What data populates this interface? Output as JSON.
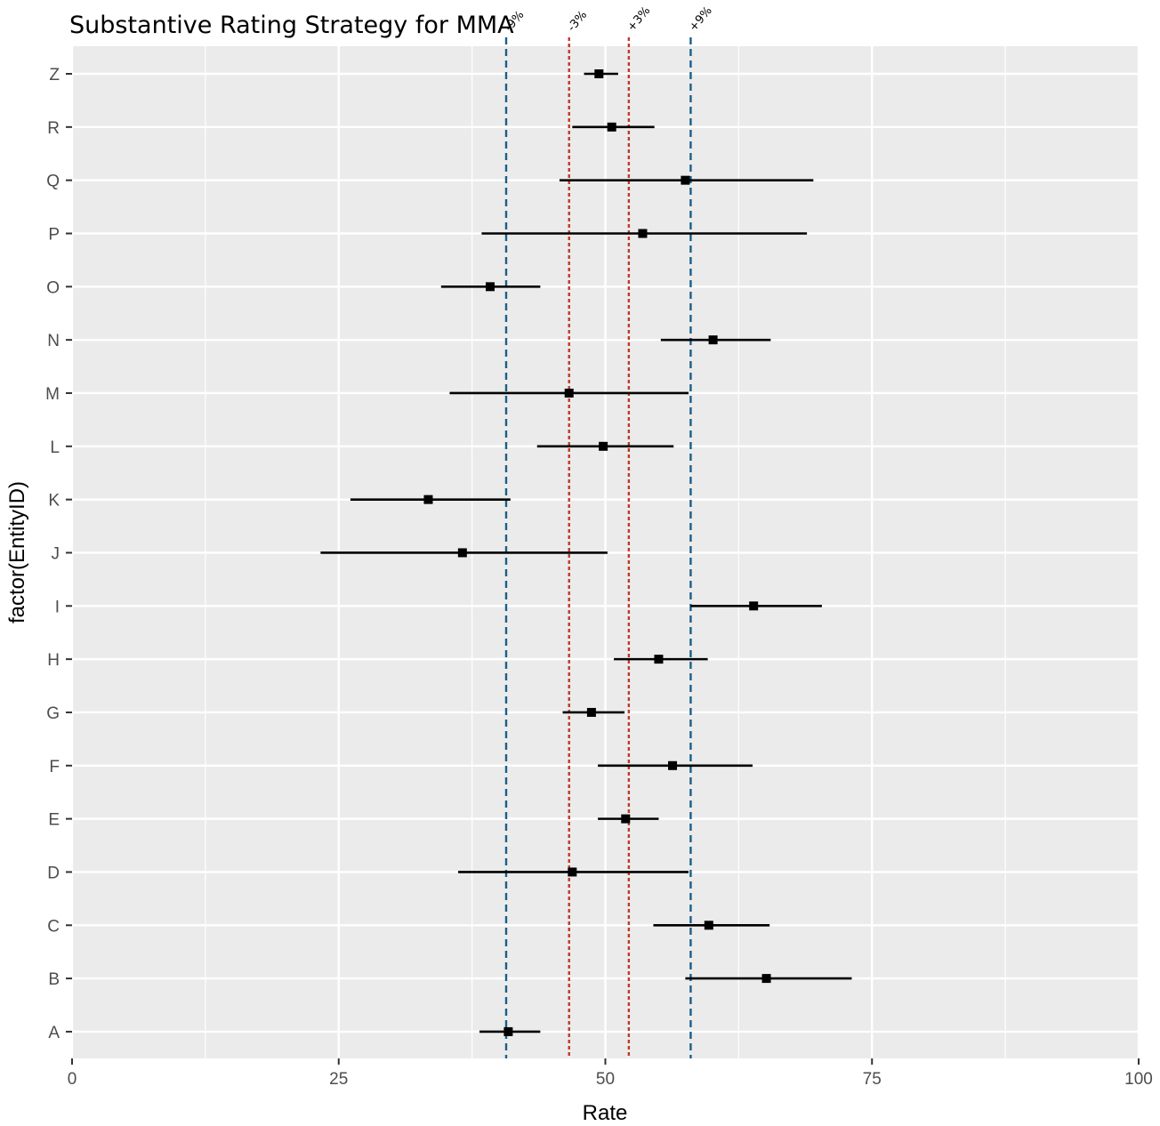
{
  "chart_data": {
    "type": "scatter",
    "title": "Substantive Rating Strategy for MMA",
    "xlabel": "Rate",
    "ylabel": "factor(EntityID)",
    "xlim": [
      0,
      100
    ],
    "x_ticks": [
      0,
      25,
      50,
      75,
      100
    ],
    "grid": true,
    "categories": [
      "A",
      "B",
      "C",
      "D",
      "E",
      "F",
      "G",
      "H",
      "I",
      "J",
      "K",
      "L",
      "M",
      "N",
      "O",
      "P",
      "Q",
      "R",
      "Z"
    ],
    "points": [
      {
        "entity": "A",
        "rate": 40.9,
        "low": 38.2,
        "high": 43.9
      },
      {
        "entity": "B",
        "rate": 65.1,
        "low": 57.5,
        "high": 73.1
      },
      {
        "entity": "C",
        "rate": 59.7,
        "low": 54.5,
        "high": 65.4
      },
      {
        "entity": "D",
        "rate": 46.9,
        "low": 36.2,
        "high": 57.8
      },
      {
        "entity": "E",
        "rate": 51.9,
        "low": 49.3,
        "high": 55.0
      },
      {
        "entity": "F",
        "rate": 56.3,
        "low": 49.3,
        "high": 63.8
      },
      {
        "entity": "G",
        "rate": 48.7,
        "low": 46.0,
        "high": 51.8
      },
      {
        "entity": "H",
        "rate": 55.0,
        "low": 50.8,
        "high": 59.6
      },
      {
        "entity": "I",
        "rate": 63.9,
        "low": 58.0,
        "high": 70.3
      },
      {
        "entity": "J",
        "rate": 36.6,
        "low": 23.3,
        "high": 50.2
      },
      {
        "entity": "K",
        "rate": 33.4,
        "low": 26.1,
        "high": 41.1
      },
      {
        "entity": "L",
        "rate": 49.8,
        "low": 43.6,
        "high": 56.4
      },
      {
        "entity": "M",
        "rate": 46.6,
        "low": 35.4,
        "high": 57.8
      },
      {
        "entity": "N",
        "rate": 60.1,
        "low": 55.2,
        "high": 65.5
      },
      {
        "entity": "O",
        "rate": 39.2,
        "low": 34.6,
        "high": 43.9
      },
      {
        "entity": "P",
        "rate": 53.5,
        "low": 38.4,
        "high": 68.9
      },
      {
        "entity": "Q",
        "rate": 57.5,
        "low": 45.7,
        "high": 69.5
      },
      {
        "entity": "R",
        "rate": 50.6,
        "low": 46.9,
        "high": 54.6
      },
      {
        "entity": "Z",
        "rate": 49.4,
        "low": 48.0,
        "high": 51.2
      }
    ],
    "reference_lines": [
      {
        "label": "-9%",
        "x": 40.7,
        "color": "#1a5f8a"
      },
      {
        "label": "-3%",
        "x": 46.6,
        "color": "#c0392b"
      },
      {
        "label": "+3%",
        "x": 52.2,
        "color": "#c0392b"
      },
      {
        "label": "+9%",
        "x": 58.0,
        "color": "#1a5f8a"
      }
    ],
    "colors": {
      "panel": "#ebebeb",
      "grid": "#ffffff",
      "point": "#000000"
    }
  }
}
